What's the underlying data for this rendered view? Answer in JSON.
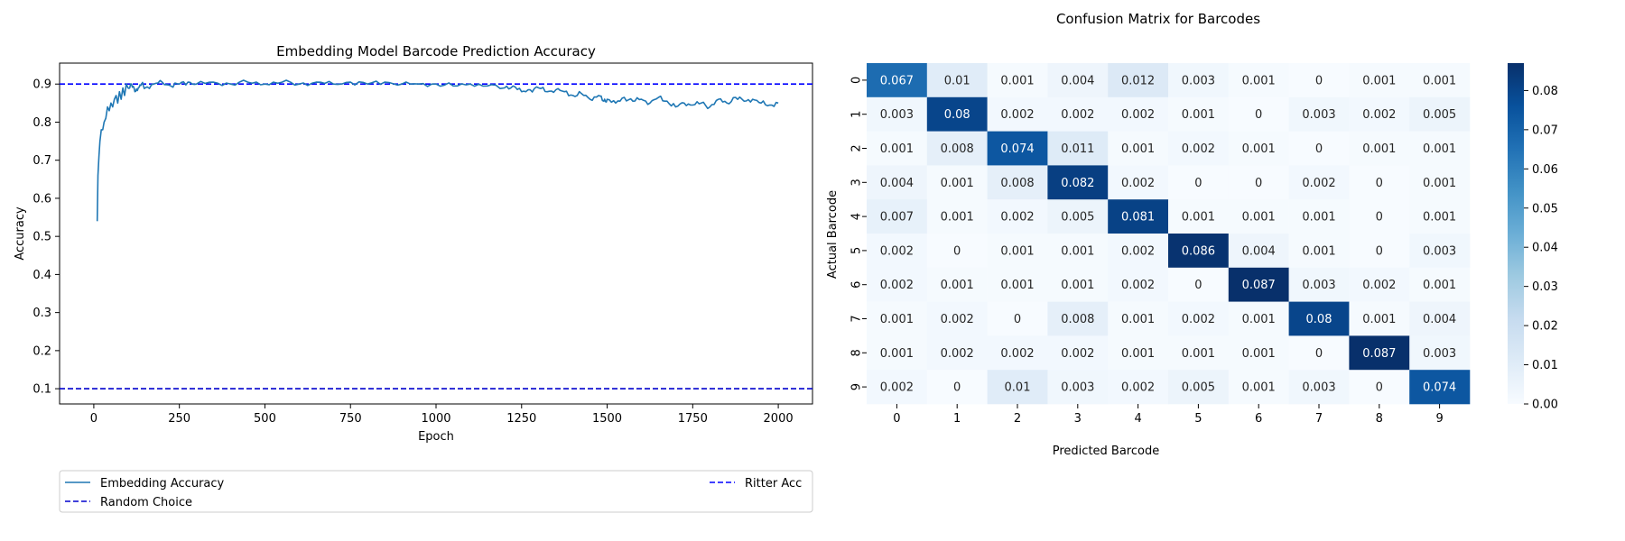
{
  "chart_data": [
    {
      "type": "line",
      "title": "Embedding Model Barcode Prediction Accuracy",
      "xlabel": "Epoch",
      "ylabel": "Accuracy",
      "xlim": [
        -100,
        2100
      ],
      "ylim": [
        0.06,
        0.955
      ],
      "xticks": [
        0,
        250,
        500,
        750,
        1000,
        1250,
        1500,
        1750,
        2000
      ],
      "yticks": [
        0.1,
        0.2,
        0.3,
        0.4,
        0.5,
        0.6,
        0.7,
        0.8,
        0.9
      ],
      "grid": false,
      "legend_position": "bottom, below plot",
      "colors": {
        "embedding": "#1f77b4",
        "random": "#0000cd",
        "ritter": "#0000ff"
      },
      "series": [
        {
          "name": "Embedding Accuracy",
          "style": "solid",
          "x": [
            10,
            12,
            15,
            18,
            22,
            26,
            30,
            35,
            40,
            45,
            50,
            55,
            60,
            65,
            70,
            75,
            80,
            85,
            90,
            95,
            100,
            110,
            120,
            130,
            140,
            150,
            175,
            200,
            225,
            250,
            275,
            300,
            350,
            400,
            450,
            500,
            550,
            600,
            650,
            700,
            750,
            800,
            850,
            900,
            950,
            1000,
            1050,
            1100,
            1150,
            1200,
            1225,
            1250,
            1275,
            1300,
            1325,
            1350,
            1375,
            1400,
            1425,
            1450,
            1475,
            1490,
            1500,
            1525,
            1550,
            1575,
            1600,
            1625,
            1650,
            1675,
            1700,
            1725,
            1750,
            1775,
            1800,
            1825,
            1850,
            1875,
            1900,
            1925,
            1950,
            1975,
            2000
          ],
          "y": [
            0.54,
            0.66,
            0.71,
            0.75,
            0.78,
            0.78,
            0.8,
            0.81,
            0.84,
            0.83,
            0.85,
            0.84,
            0.86,
            0.87,
            0.85,
            0.88,
            0.86,
            0.89,
            0.87,
            0.9,
            0.89,
            0.9,
            0.88,
            0.89,
            0.9,
            0.89,
            0.9,
            0.905,
            0.895,
            0.9,
            0.905,
            0.9,
            0.905,
            0.9,
            0.905,
            0.9,
            0.905,
            0.9,
            0.905,
            0.9,
            0.905,
            0.9,
            0.905,
            0.9,
            0.9,
            0.9,
            0.895,
            0.9,
            0.895,
            0.89,
            0.895,
            0.88,
            0.885,
            0.89,
            0.88,
            0.885,
            0.88,
            0.87,
            0.875,
            0.86,
            0.87,
            0.855,
            0.86,
            0.85,
            0.865,
            0.855,
            0.86,
            0.85,
            0.865,
            0.855,
            0.84,
            0.85,
            0.845,
            0.85,
            0.84,
            0.86,
            0.85,
            0.865,
            0.855,
            0.86,
            0.85,
            0.845,
            0.85
          ]
        },
        {
          "name": "Random Choice",
          "style": "dashed",
          "constant": 0.1
        },
        {
          "name": "Ritter Acc",
          "style": "dashed",
          "constant": 0.9
        }
      ]
    },
    {
      "type": "heatmap",
      "title": "Confusion Matrix for Barcodes",
      "xlabel": "Predicted Barcode",
      "ylabel": "Actual Barcode",
      "x_categories": [
        "0",
        "1",
        "2",
        "3",
        "4",
        "5",
        "6",
        "7",
        "8",
        "9"
      ],
      "y_categories": [
        "0",
        "1",
        "2",
        "3",
        "4",
        "5",
        "6",
        "7",
        "8",
        "9"
      ],
      "colormap": "Blues",
      "vmin": 0,
      "vmax": 0.087,
      "colorbar_ticks": [
        "0.00",
        "0.01",
        "0.02",
        "0.03",
        "0.04",
        "0.05",
        "0.06",
        "0.07",
        "0.08"
      ],
      "values": [
        [
          "0.067",
          "0.01",
          "0.001",
          "0.004",
          "0.012",
          "0.003",
          "0.001",
          "0",
          "0.001",
          "0.001"
        ],
        [
          "0.003",
          "0.08",
          "0.002",
          "0.002",
          "0.002",
          "0.001",
          "0",
          "0.003",
          "0.002",
          "0.005"
        ],
        [
          "0.001",
          "0.008",
          "0.074",
          "0.011",
          "0.001",
          "0.002",
          "0.001",
          "0",
          "0.001",
          "0.001"
        ],
        [
          "0.004",
          "0.001",
          "0.008",
          "0.082",
          "0.002",
          "0",
          "0",
          "0.002",
          "0",
          "0.001"
        ],
        [
          "0.007",
          "0.001",
          "0.002",
          "0.005",
          "0.081",
          "0.001",
          "0.001",
          "0.001",
          "0",
          "0.001"
        ],
        [
          "0.002",
          "0",
          "0.001",
          "0.001",
          "0.002",
          "0.086",
          "0.004",
          "0.001",
          "0",
          "0.003"
        ],
        [
          "0.002",
          "0.001",
          "0.001",
          "0.001",
          "0.002",
          "0",
          "0.087",
          "0.003",
          "0.002",
          "0.001"
        ],
        [
          "0.001",
          "0.002",
          "0",
          "0.008",
          "0.001",
          "0.002",
          "0.001",
          "0.08",
          "0.001",
          "0.004"
        ],
        [
          "0.001",
          "0.002",
          "0.002",
          "0.002",
          "0.001",
          "0.001",
          "0.001",
          "0",
          "0.087",
          "0.003"
        ],
        [
          "0.002",
          "0",
          "0.01",
          "0.003",
          "0.002",
          "0.005",
          "0.001",
          "0.003",
          "0",
          "0.074"
        ]
      ]
    }
  ]
}
